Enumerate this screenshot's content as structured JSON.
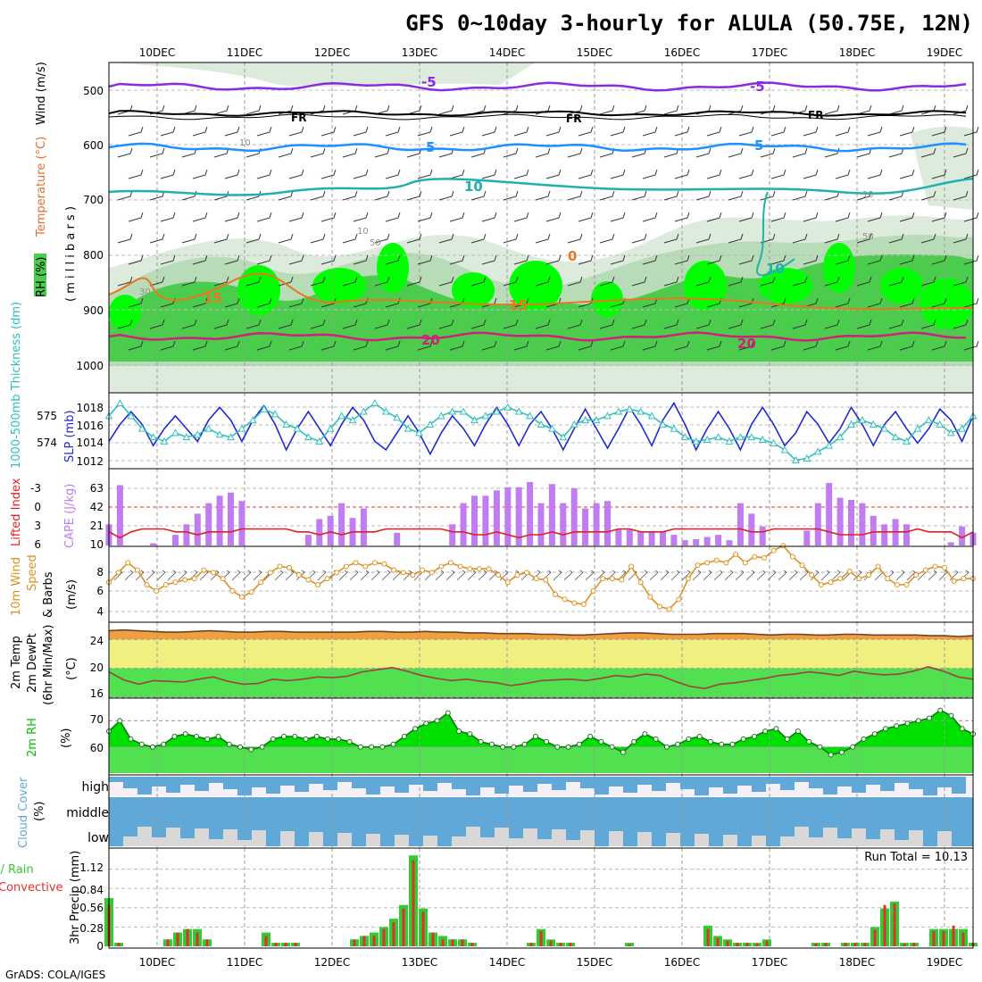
{
  "title": "GFS 0~10day 3-hourly for ALULA (50.75E, 12N)",
  "credit": "GrADS: COLA/IGES",
  "dates": [
    "10DEC",
    "11DEC",
    "12DEC",
    "13DEC",
    "14DEC",
    "15DEC",
    "16DEC",
    "17DEC",
    "18DEC",
    "19DEC"
  ],
  "colors": {
    "rh_dark": "#00ff00",
    "rh_mid": "#4ccc4c",
    "rh_light": "#b8dbb8",
    "rh_faint": "#dcebdc",
    "t_minus5": "#8a2be2",
    "t_freezing": "#000000",
    "t_5": "#1e90ff",
    "t_10": "#20b2aa",
    "t_15": "#e8781e",
    "t_20": "#d0207a",
    "slp": "#1e2bd0",
    "thickness": "#2fbfbf",
    "cape": "#c07cf0",
    "lifted_index": "#e02020",
    "wind10m": "#e09020",
    "temp2m_fill": "#f0a040",
    "temp_band": "#f0f080",
    "dewpt_fill": "#50e050",
    "rh2m": "#00e000",
    "cloud": "#60a8d8",
    "cloud_low_gap": "#d8d8d8",
    "precip_total": "#33cc33",
    "precip_conv": "#e03030"
  },
  "panels": {
    "pressure": {
      "ylabel_rh": "RH (%)",
      "ylabel_temp": "Temperature (°C)",
      "ylabel_wind": "Wind (m/s)",
      "ylabel_unit": "( m i l l i b a r s )",
      "ticks": [
        "500",
        "600",
        "700",
        "800",
        "900",
        "1000"
      ],
      "contour_labels": {
        "minus5": "-5",
        "freezing": "FR",
        "plus5": "5",
        "plus10": "10",
        "plus15": "15",
        "plus20": "20",
        "rh10": "10",
        "rh30": "30",
        "rh50": "50",
        "zero": "0"
      }
    },
    "slp": {
      "ylabel_left": "1000-500mb Thickness (dm)",
      "ylabel_right": "SLP (mb)",
      "left_ticks": [
        "575",
        "574"
      ],
      "right_ticks": [
        "1018",
        "1016",
        "1014",
        "1012"
      ]
    },
    "cape": {
      "ylabel_left": "Lifted Index",
      "ylabel_right": "CAPE (J/kg)",
      "left_ticks": [
        "-3",
        "0",
        "3",
        "6"
      ],
      "right_ticks": [
        "63",
        "42",
        "21",
        "10"
      ]
    },
    "wind": {
      "ylabel_a": "10m Wind",
      "ylabel_b": "Speed",
      "ylabel_c": "& Barbs",
      "unit": "(m/s)",
      "ticks": [
        "8",
        "6",
        "4"
      ]
    },
    "temp": {
      "ylabel_a": "2m Temp",
      "ylabel_b": "2m DewPt",
      "ylabel_c": "(6hr Min/Max)",
      "unit": "(°C)",
      "ticks": [
        "24",
        "20",
        "16"
      ]
    },
    "rh2m": {
      "ylabel": "2m RH",
      "unit": "(%)",
      "ticks": [
        "70",
        "60"
      ]
    },
    "cloud": {
      "ylabel": "Cloud Cover",
      "unit": "(%)",
      "levels": [
        "high",
        "middle",
        "low"
      ]
    },
    "precip": {
      "ylabel_a": "Total / Rain",
      "ylabel_b": "Convective",
      "ylabel_c": "3hr Precip (mm)",
      "ticks": [
        "1.12",
        "0.84",
        "0.56",
        "0.28",
        "0"
      ],
      "run_total": "Run Total = 10.13"
    }
  },
  "chart_data": [
    {
      "type": "line",
      "title": "Sea level pressure / 1000-500mb thickness",
      "xlabel": "",
      "ylabel": "SLP (mb)",
      "ylim": [
        1011,
        1019.5
      ],
      "series": [
        {
          "name": "SLP (mb)",
          "values": [
            1014.0,
            1016.0,
            1017.5,
            1016.0,
            1013.5,
            1015.5,
            1017.0,
            1015.5,
            1014.0,
            1016.5,
            1018.0,
            1016.5,
            1014.0,
            1016.5,
            1018.2,
            1016.0,
            1013.0,
            1015.5,
            1017.5,
            1015.5,
            1013.5,
            1016.0,
            1018.0,
            1016.5,
            1014.0,
            1013.0,
            1015.0,
            1017.0,
            1015.0,
            1012.5,
            1015.0,
            1017.0,
            1015.5,
            1013.5,
            1016.0,
            1018.0,
            1016.0,
            1013.5,
            1016.0,
            1017.5,
            1015.5,
            1013.0,
            1015.5,
            1017.8,
            1015.5,
            1013.2,
            1015.5,
            1018.0,
            1016.0,
            1013.5,
            1016.5,
            1018.5,
            1016.0,
            1013.0,
            1015.5,
            1017.5,
            1015.5,
            1013.0,
            1016.0,
            1018.0,
            1016.0,
            1013.5,
            1015.0,
            1017.5,
            1016.0,
            1013.8,
            1015.5,
            1018.0,
            1016.0,
            1013.5,
            1016.0,
            1017.5,
            1015.5,
            1013.8,
            1015.5,
            1017.8,
            1016.5,
            1014.0,
            1017.0
          ]
        },
        {
          "name": "1000-500mb Thickness (dm)",
          "values": [
            1017.0,
            1018.5,
            1017.0,
            1015.5,
            1014.5,
            1014.0,
            1015.0,
            1014.5,
            1014.8,
            1015.5,
            1014.8,
            1014.5,
            1015.5,
            1016.5,
            1017.8,
            1017.2,
            1016.0,
            1015.5,
            1014.5,
            1014.0,
            1015.5,
            1017.0,
            1016.5,
            1017.5,
            1018.5,
            1017.5,
            1016.8,
            1015.5,
            1015.0,
            1016.0,
            1017.0,
            1017.5,
            1017.5,
            1016.5,
            1017.0,
            1017.5,
            1018.0,
            1017.5,
            1017.0,
            1016.0,
            1015.5,
            1014.5,
            1016.0,
            1016.5,
            1016.5,
            1017.0,
            1017.5,
            1017.8,
            1017.5,
            1017.0,
            1016.0,
            1015.5,
            1014.5,
            1014.0,
            1014.2,
            1014.5,
            1014.0,
            1014.5,
            1014.5,
            1014.2,
            1013.8,
            1013.0,
            1011.8,
            1012.0,
            1012.8,
            1013.5,
            1014.5,
            1016.0,
            1016.5,
            1016.0,
            1015.5,
            1014.5,
            1014.0,
            1015.5,
            1016.5,
            1016.0,
            1015.0,
            1015.5,
            1017.0
          ]
        }
      ]
    },
    {
      "type": "bar",
      "title": "CAPE (J/kg) / Lifted Index",
      "xlabel": "",
      "ylabel": "CAPE (J/kg)",
      "ylim": [
        0,
        70
      ],
      "series": [
        {
          "name": "CAPE (J/kg)",
          "values": [
            20,
            57,
            0,
            0,
            2,
            0,
            10,
            20,
            30,
            40,
            47,
            50,
            42,
            0,
            0,
            0,
            0,
            0,
            10,
            25,
            28,
            40,
            26,
            35,
            0,
            0,
            12,
            0,
            0,
            0,
            0,
            20,
            40,
            47,
            47,
            52,
            55,
            55,
            60,
            40,
            58,
            40,
            54,
            35,
            40,
            42,
            15,
            15,
            13,
            13,
            13,
            10,
            5,
            6,
            8,
            10,
            5,
            40,
            30,
            18,
            0,
            0,
            0,
            14,
            40,
            59,
            45,
            43,
            40,
            28,
            20,
            25,
            20,
            0,
            0,
            0,
            3,
            18,
            12
          ]
        },
        {
          "name": "Lifted Index",
          "values": [
            5,
            3,
            5,
            6,
            6,
            6,
            5,
            5,
            4,
            5,
            5,
            5,
            6,
            6,
            6,
            6,
            6,
            5,
            5,
            4,
            5,
            4,
            5,
            5,
            5,
            6,
            6,
            6,
            6,
            6,
            6,
            5,
            5,
            4,
            4,
            5,
            4,
            3,
            4,
            4,
            5,
            4,
            5,
            5,
            5,
            5,
            6,
            6,
            5,
            5,
            5,
            6,
            6,
            6,
            6,
            6,
            6,
            6,
            5,
            5,
            6,
            6,
            6,
            6,
            6,
            5,
            4,
            4,
            4,
            5,
            5,
            5,
            5,
            6,
            5,
            5,
            5,
            3,
            5
          ]
        }
      ]
    },
    {
      "type": "line",
      "title": "10m Wind Speed",
      "xlabel": "",
      "ylabel": "(m/s)",
      "ylim": [
        3,
        9
      ],
      "series": [
        {
          "name": "10m Wind Speed",
          "values": [
            6.2,
            7.0,
            7.8,
            7.2,
            6.0,
            5.5,
            6.0,
            6.2,
            6.4,
            6.5,
            7.2,
            7.0,
            6.5,
            5.5,
            5.0,
            5.4,
            6.2,
            7.0,
            7.5,
            7.4,
            6.8,
            6.4,
            6.0,
            6.5,
            7.0,
            7.5,
            7.8,
            7.5,
            7.8,
            7.7,
            7.2,
            7.0,
            6.8,
            7.2,
            7.0,
            7.5,
            7.8,
            7.5,
            7.3,
            7.3,
            7.3,
            6.8,
            6.2,
            6.8,
            7.0,
            6.5,
            6.4,
            5.2,
            4.8,
            4.5,
            4.4,
            5.5,
            6.5,
            6.5,
            6.4,
            7.5,
            6.2,
            5.0,
            4.2,
            4.0,
            4.8,
            6.5,
            7.6,
            7.8,
            8.0,
            7.8,
            8.5,
            7.8,
            8.3,
            8.2,
            8.8,
            9.2,
            8.3,
            7.6,
            6.8,
            6.0,
            6.2,
            6.5,
            7.1,
            6.5,
            6.8,
            7.5,
            6.5,
            6.0,
            6.0,
            6.8,
            7.2,
            7.5,
            7.4,
            6.3,
            6.5,
            6.5
          ]
        }
      ]
    },
    {
      "type": "line",
      "title": "2m Temp / 2m DewPt",
      "xlabel": "",
      "ylabel": "(°C)",
      "ylim": [
        16,
        26
      ],
      "series": [
        {
          "name": "2m Temp",
          "values": [
            25.2,
            25.3,
            25.2,
            25.1,
            25.0,
            25.0,
            25.1,
            25.2,
            25.1,
            25.0,
            25.0,
            25.1,
            25.1,
            25.0,
            25.0,
            25.0,
            25.0,
            25.0,
            25.1,
            25.1,
            25.0,
            25.0,
            25.1,
            25.0,
            25.0,
            24.9,
            24.9,
            24.8,
            24.8,
            24.8,
            24.7,
            24.7,
            24.6,
            24.6,
            24.7,
            24.8,
            24.9,
            24.9,
            24.8,
            24.7,
            24.7,
            24.7,
            24.8,
            24.8,
            24.8,
            24.7,
            24.6,
            24.7,
            24.7,
            24.6,
            24.6,
            24.7,
            24.7,
            24.6,
            24.6,
            24.6,
            24.6,
            24.5,
            24.5,
            24.4,
            24.5
          ]
        },
        {
          "name": "2m DewPt",
          "values": [
            19.5,
            18.4,
            17.8,
            18.3,
            18.2,
            18.1,
            18.5,
            18.8,
            18.2,
            17.8,
            17.9,
            18.5,
            18.3,
            18.5,
            18.8,
            18.7,
            18.9,
            19.5,
            19.8,
            20.1,
            19.6,
            19.0,
            18.6,
            18.3,
            18.5,
            18.2,
            18.0,
            17.6,
            17.9,
            18.3,
            18.4,
            18.5,
            18.3,
            18.6,
            19.0,
            18.8,
            19.2,
            19.0,
            18.2,
            17.5,
            17.2,
            17.8,
            18.0,
            18.3,
            18.6,
            19.0,
            19.2,
            19.5,
            19.3,
            19.0,
            19.6,
            19.3,
            19.1,
            19.2,
            19.6,
            20.2,
            19.6,
            18.8,
            18.5
          ]
        }
      ]
    },
    {
      "type": "area",
      "title": "2m RH",
      "xlabel": "",
      "ylabel": "(%)",
      "ylim": [
        50,
        78
      ],
      "series": [
        {
          "name": "2m RH",
          "values": [
            66,
            70,
            63,
            61,
            60,
            61,
            64,
            65,
            64,
            63,
            64,
            61,
            60,
            59,
            60,
            63,
            64,
            64,
            63,
            64,
            63,
            63,
            62,
            60,
            60,
            60,
            61,
            64,
            67,
            69,
            70,
            73,
            66,
            65,
            62,
            61,
            60,
            60,
            61,
            64,
            62,
            60,
            60,
            61,
            64,
            62,
            60,
            58,
            62,
            65,
            63,
            60,
            61,
            63,
            64,
            62,
            61,
            61,
            63,
            64,
            66,
            67,
            63,
            66,
            62,
            60,
            57,
            58,
            60,
            63,
            65,
            67,
            68,
            69,
            70,
            71,
            74,
            72,
            67,
            65
          ]
        }
      ]
    },
    {
      "type": "bar",
      "title": "3hr Precip (mm)",
      "xlabel": "",
      "ylabel": "3hr Precip (mm)",
      "ylim": [
        0,
        1.4
      ],
      "series": [
        {
          "name": "Total / Rain",
          "values": [
            0.7,
            0.05,
            0,
            0,
            0,
            0,
            0.1,
            0.2,
            0.25,
            0.25,
            0.1,
            0,
            0,
            0,
            0,
            0,
            0.2,
            0.05,
            0.05,
            0.05,
            0,
            0,
            0,
            0,
            0,
            0.1,
            0.15,
            0.2,
            0.28,
            0.4,
            0.6,
            1.32,
            0.55,
            0.2,
            0.15,
            0.1,
            0.1,
            0.05,
            0,
            0,
            0,
            0,
            0,
            0.05,
            0.25,
            0.1,
            0.05,
            0.05,
            0,
            0,
            0,
            0,
            0,
            0.05,
            0,
            0,
            0,
            0,
            0,
            0,
            0,
            0.3,
            0.15,
            0.1,
            0.05,
            0.05,
            0.05,
            0.1,
            0,
            0,
            0,
            0,
            0.05,
            0.05,
            0,
            0.05,
            0.05,
            0.05,
            0.28,
            0.55,
            0.65,
            0.05,
            0.05,
            0,
            0.25,
            0.25,
            0.25,
            0.25,
            0.05
          ]
        },
        {
          "name": "Convective",
          "values": [
            0.6,
            0.05,
            0,
            0,
            0,
            0,
            0.1,
            0.2,
            0.25,
            0.2,
            0.1,
            0,
            0,
            0,
            0,
            0,
            0.15,
            0.05,
            0.05,
            0.05,
            0,
            0,
            0,
            0,
            0,
            0.1,
            0.15,
            0.15,
            0.25,
            0.35,
            0.55,
            1.25,
            0.5,
            0.2,
            0.1,
            0.1,
            0.1,
            0.05,
            0,
            0,
            0,
            0,
            0,
            0.05,
            0.22,
            0.08,
            0.05,
            0.05,
            0,
            0,
            0,
            0,
            0,
            0.03,
            0,
            0,
            0,
            0,
            0,
            0,
            0,
            0.25,
            0.12,
            0.08,
            0.05,
            0.05,
            0.04,
            0.08,
            0,
            0,
            0,
            0,
            0.04,
            0.05,
            0,
            0.05,
            0.05,
            0.05,
            0.24,
            0.6,
            0.62,
            0.04,
            0.05,
            0,
            0.22,
            0.22,
            0.3,
            0.2,
            0.05
          ]
        }
      ]
    }
  ]
}
